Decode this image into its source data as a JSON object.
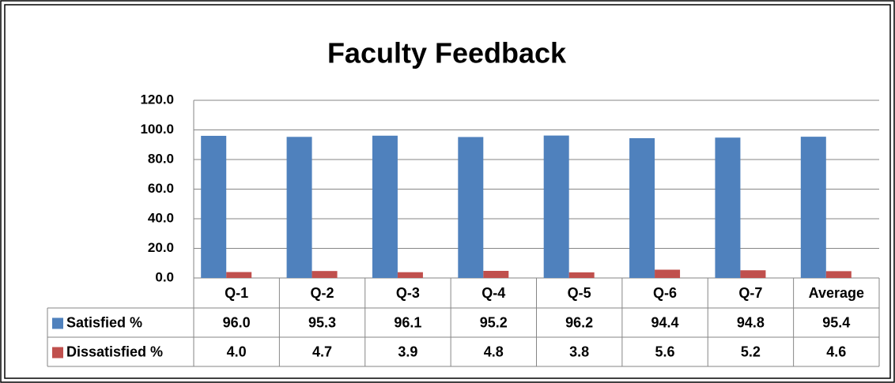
{
  "chart_data": {
    "type": "bar",
    "title": "Faculty Feedback",
    "categories": [
      "Q-1",
      "Q-2",
      "Q-3",
      "Q-4",
      "Q-5",
      "Q-6",
      "Q-7",
      "Average"
    ],
    "series": [
      {
        "name": "Satisfied %",
        "color": "#4f81bd",
        "values": [
          96.0,
          95.3,
          96.1,
          95.2,
          96.2,
          94.4,
          94.8,
          95.4
        ],
        "value_labels": [
          "96.0",
          "95.3",
          "96.1",
          "95.2",
          "96.2",
          "94.4",
          "94.8",
          "95.4"
        ]
      },
      {
        "name": "Dissatisfied %",
        "color": "#c0504d",
        "values": [
          4.0,
          4.7,
          3.9,
          4.8,
          3.8,
          5.6,
          5.2,
          4.6
        ],
        "value_labels": [
          "4.0",
          "4.7",
          "3.9",
          "4.8",
          "3.8",
          "5.6",
          "5.2",
          "4.6"
        ]
      }
    ],
    "ylim": [
      0,
      120
    ],
    "yticks": [
      {
        "value": 0,
        "label": "0.0"
      },
      {
        "value": 20,
        "label": "20.0"
      },
      {
        "value": 40,
        "label": "40.0"
      },
      {
        "value": 60,
        "label": "60.0"
      },
      {
        "value": 80,
        "label": "80.0"
      },
      {
        "value": 100,
        "label": "100.0"
      },
      {
        "value": 120,
        "label": "120.0"
      }
    ],
    "grid": true
  }
}
